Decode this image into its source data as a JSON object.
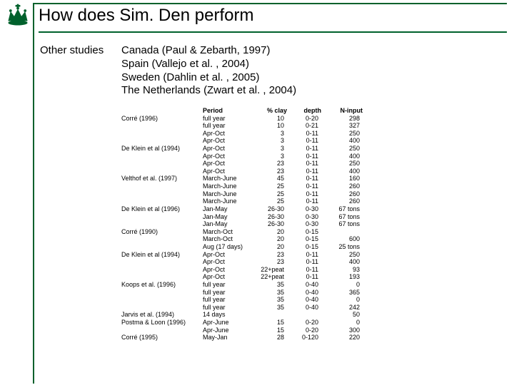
{
  "accent_color": "#00612c",
  "background_color": "#ffffff",
  "title": "How does Sim. Den perform",
  "other_studies_label": "Other studies",
  "studies": [
    "Canada (Paul & Zebarth, 1997)",
    "Spain (Vallejo et al. , 2004)",
    "Sweden (Dahlin et al. , 2005)",
    "The Netherlands (Zwart et al. , 2004)"
  ],
  "table": {
    "columns": [
      "",
      "Period",
      "% clay",
      "depth",
      "N-input"
    ],
    "col_align": [
      "left",
      "left",
      "right",
      "right",
      "right"
    ],
    "fontsize": 9,
    "rows": [
      [
        "Corré (1996)",
        "full year",
        "10",
        "0-20",
        "298"
      ],
      [
        "",
        "full year",
        "10",
        "0-21",
        "327"
      ],
      [
        "",
        "Apr-Oct",
        "3",
        "0-11",
        "250"
      ],
      [
        "",
        "Apr-Oct",
        "3",
        "0-11",
        "400"
      ],
      [
        "De Klein et al (1994)",
        "Apr-Oct",
        "3",
        "0-11",
        "250"
      ],
      [
        "",
        "Apr-Oct",
        "3",
        "0-11",
        "400"
      ],
      [
        "",
        "Apr-Oct",
        "23",
        "0-11",
        "250"
      ],
      [
        "",
        "Apr-Oct",
        "23",
        "0-11",
        "400"
      ],
      [
        "Velthof et al. (1997)",
        "March-June",
        "45",
        "0-11",
        "160"
      ],
      [
        "",
        "March-June",
        "25",
        "0-11",
        "260"
      ],
      [
        "",
        "March-June",
        "25",
        "0-11",
        "260"
      ],
      [
        "",
        "March-June",
        "25",
        "0-11",
        "260"
      ],
      [
        "De Klein et al (1996)",
        "Jan-May",
        "26-30",
        "0-30",
        "67 tons"
      ],
      [
        "",
        "Jan-May",
        "26-30",
        "0-30",
        "67 tons"
      ],
      [
        "",
        "Jan-May",
        "26-30",
        "0-30",
        "67 tons"
      ],
      [
        "Corré (1990)",
        "March-Oct",
        "20",
        "0-15",
        ""
      ],
      [
        "",
        "March-Oct",
        "20",
        "0-15",
        "600"
      ],
      [
        "",
        "Aug (17 days)",
        "20",
        "0-15",
        "25 tons"
      ],
      [
        "De Klein et al (1994)",
        "Apr-Oct",
        "23",
        "0-11",
        "250"
      ],
      [
        "",
        "Apr-Oct",
        "23",
        "0-11",
        "400"
      ],
      [
        "",
        "Apr-Oct",
        "22+peat",
        "0-11",
        "93"
      ],
      [
        "",
        "Apr-Oct",
        "22+peat",
        "0-11",
        "193"
      ],
      [
        "Koops et al. (1996)",
        "full year",
        "35",
        "0-40",
        "0"
      ],
      [
        "",
        "full year",
        "35",
        "0-40",
        "365"
      ],
      [
        "",
        "full year",
        "35",
        "0-40",
        "0"
      ],
      [
        "",
        "full year",
        "35",
        "0-40",
        "242"
      ],
      [
        "Jarvis et al. (1994)",
        "14 days",
        "",
        "",
        "50"
      ],
      [
        "Postma & Loon (1996)",
        "Apr-June",
        "15",
        "0-20",
        "0"
      ],
      [
        "",
        "Apr-June",
        "15",
        "0-20",
        "300"
      ],
      [
        "Corré (1995)",
        "May-Jan",
        "28",
        "0-120",
        "220"
      ]
    ]
  }
}
